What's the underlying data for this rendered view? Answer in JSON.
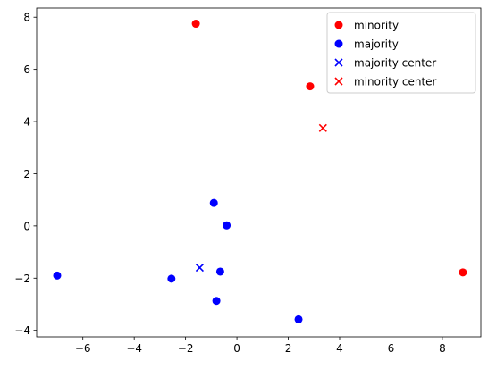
{
  "chart_data": {
    "type": "scatter",
    "xlim": [
      -7.8,
      9.5
    ],
    "ylim": [
      -4.25,
      8.35
    ],
    "x_ticks": [
      -6,
      -4,
      -2,
      0,
      2,
      4,
      6,
      8
    ],
    "y_ticks": [
      -4,
      -2,
      0,
      2,
      4,
      6,
      8
    ],
    "x_tick_labels": [
      "−6",
      "−4",
      "−2",
      "0",
      "2",
      "4",
      "6",
      "8"
    ],
    "y_tick_labels": [
      "−4",
      "−2",
      "0",
      "2",
      "4",
      "6",
      "8"
    ],
    "grid": false,
    "legend_position": "top-right",
    "series": [
      {
        "name": "minority",
        "marker": "circle",
        "color": "#ff0000",
        "points": [
          [
            -1.6,
            7.75
          ],
          [
            2.85,
            5.35
          ],
          [
            8.8,
            -1.78
          ]
        ]
      },
      {
        "name": "majority",
        "marker": "circle",
        "color": "#0000ff",
        "points": [
          [
            -0.9,
            0.88
          ],
          [
            -0.4,
            0.02
          ],
          [
            -7.0,
            -1.9
          ],
          [
            -2.55,
            -2.02
          ],
          [
            -0.65,
            -1.75
          ],
          [
            -0.8,
            -2.87
          ],
          [
            2.4,
            -3.58
          ]
        ]
      },
      {
        "name": "majority center",
        "marker": "x",
        "color": "#0000ff",
        "points": [
          [
            -1.45,
            -1.6
          ]
        ]
      },
      {
        "name": "minority center",
        "marker": "x",
        "color": "#ff0000",
        "points": [
          [
            3.35,
            3.75
          ]
        ]
      }
    ]
  }
}
